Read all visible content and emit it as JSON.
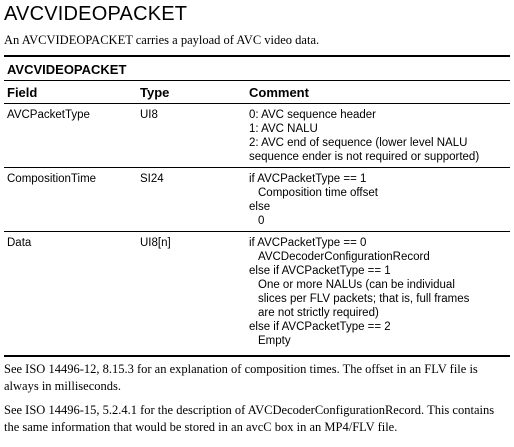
{
  "title": "AVCVIDEOPACKET",
  "intro": "An AVCVIDEOPACKET carries a payload of AVC video data.",
  "table": {
    "title": "AVCVIDEOPACKET",
    "headers": {
      "field": "Field",
      "type": "Type",
      "comment": "Comment"
    },
    "rows": [
      {
        "field": "AVCPacketType",
        "type": "UI8",
        "comment": [
          "0: AVC sequence header",
          "1: AVC NALU",
          "2: AVC end of sequence (lower level NALU",
          "sequence ender is not required or supported)"
        ]
      },
      {
        "field": "CompositionTime",
        "type": "SI24",
        "comment": [
          "if AVCPacketType == 1",
          "Composition time offset",
          "else",
          "0"
        ]
      },
      {
        "field": "Data",
        "type": "UI8[n]",
        "comment": [
          "if AVCPacketType == 0",
          "AVCDecoderConfigurationRecord",
          "else if AVCPacketType == 1",
          "One or more NALUs (can be individual",
          "slices per FLV packets; that is, full frames",
          "are not strictly required)",
          "else if AVCPacketType == 2",
          "Empty"
        ]
      }
    ]
  },
  "notes": [
    "See ISO 14496-12, 8.15.3 for an explanation of composition times. The offset in an FLV file is always in milliseconds.",
    "See ISO 14496-15, 5.2.4.1 for the description of AVCDecoderConfigurationRecord. This contains the same information that would be stored in an avcC box in an MP4/FLV file."
  ]
}
